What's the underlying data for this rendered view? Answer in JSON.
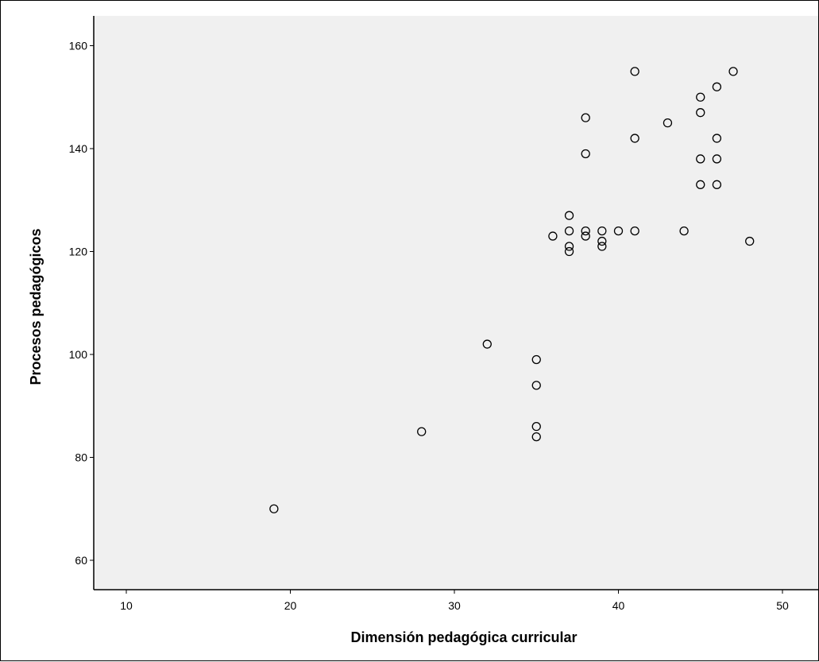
{
  "chart_data": {
    "type": "scatter",
    "xlabel": "Dimensión pedagógica curricular",
    "ylabel": "Procesos pedagógicos",
    "xlim": [
      8,
      52
    ],
    "ylim": [
      55,
      164
    ],
    "x_ticks": [
      10,
      20,
      30,
      40,
      50
    ],
    "y_ticks": [
      60,
      80,
      100,
      120,
      140,
      160
    ],
    "grid": false,
    "points": [
      {
        "x": 19,
        "y": 70
      },
      {
        "x": 28,
        "y": 85
      },
      {
        "x": 32,
        "y": 102
      },
      {
        "x": 35,
        "y": 99
      },
      {
        "x": 35,
        "y": 94
      },
      {
        "x": 35,
        "y": 86
      },
      {
        "x": 35,
        "y": 84
      },
      {
        "x": 36,
        "y": 123
      },
      {
        "x": 37,
        "y": 127
      },
      {
        "x": 37,
        "y": 124
      },
      {
        "x": 37,
        "y": 121
      },
      {
        "x": 37,
        "y": 120
      },
      {
        "x": 38,
        "y": 146
      },
      {
        "x": 38,
        "y": 139
      },
      {
        "x": 38,
        "y": 124
      },
      {
        "x": 38,
        "y": 123
      },
      {
        "x": 39,
        "y": 124
      },
      {
        "x": 39,
        "y": 122
      },
      {
        "x": 39,
        "y": 121
      },
      {
        "x": 40,
        "y": 124
      },
      {
        "x": 41,
        "y": 155
      },
      {
        "x": 41,
        "y": 142
      },
      {
        "x": 41,
        "y": 124
      },
      {
        "x": 43,
        "y": 145
      },
      {
        "x": 44,
        "y": 124
      },
      {
        "x": 45,
        "y": 150
      },
      {
        "x": 45,
        "y": 147
      },
      {
        "x": 45,
        "y": 138
      },
      {
        "x": 45,
        "y": 133
      },
      {
        "x": 46,
        "y": 152
      },
      {
        "x": 46,
        "y": 142
      },
      {
        "x": 46,
        "y": 138
      },
      {
        "x": 46,
        "y": 133
      },
      {
        "x": 47,
        "y": 155
      },
      {
        "x": 48,
        "y": 122
      }
    ]
  },
  "colors": {
    "plot_background": "#f0f0f0",
    "marker_stroke": "#000000",
    "axis": "#000000"
  }
}
